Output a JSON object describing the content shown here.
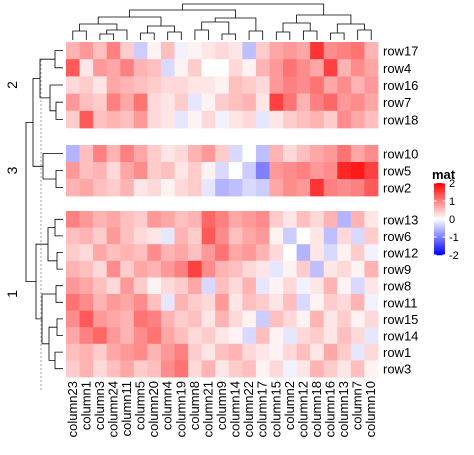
{
  "chart_data": {
    "type": "heatmap",
    "columns": [
      "column23",
      "column1",
      "column3",
      "column24",
      "column11",
      "column5",
      "column20",
      "column4",
      "column19",
      "column8",
      "column21",
      "column9",
      "column14",
      "column22",
      "column17",
      "column15",
      "column2",
      "column12",
      "column18",
      "column16",
      "column13",
      "column7",
      "column10"
    ],
    "row_slices": [
      {
        "label": "2",
        "rows": [
          "row17",
          "row4",
          "row16",
          "row7",
          "row18"
        ]
      },
      {
        "label": "3",
        "rows": [
          "row10",
          "row5",
          "row2"
        ]
      },
      {
        "label": "1",
        "rows": [
          "row13",
          "row6",
          "row12",
          "row9",
          "row8",
          "row11",
          "row15",
          "row14",
          "row1",
          "row3"
        ]
      }
    ],
    "values": {
      "row17": [
        0.6,
        0.8,
        0.5,
        1.0,
        0.4,
        -0.4,
        0.1,
        0.5,
        -0.1,
        0.1,
        0.2,
        0.3,
        0.2,
        -0.5,
        0.4,
        0.7,
        0.8,
        0.7,
        1.6,
        0.9,
        1.0,
        1.1,
        0.6
      ],
      "row4": [
        1.3,
        0.2,
        0.8,
        0.7,
        1.0,
        0.6,
        0.5,
        -0.3,
        0.1,
        0.4,
        0.0,
        0.0,
        0.3,
        0.1,
        0.6,
        0.8,
        1.1,
        0.9,
        0.7,
        1.5,
        0.6,
        0.9,
        0.7
      ],
      "row16": [
        0.3,
        0.4,
        0.2,
        0.7,
        0.6,
        0.5,
        0.4,
        0.3,
        0.3,
        0.2,
        0.2,
        0.1,
        0.5,
        0.4,
        0.3,
        0.8,
        1.0,
        0.9,
        1.1,
        0.7,
        0.9,
        0.6,
        0.8
      ],
      "row7": [
        0.8,
        0.5,
        0.4,
        1.0,
        0.7,
        1.1,
        0.3,
        0.2,
        0.4,
        -0.2,
        0.1,
        0.4,
        0.5,
        0.6,
        0.2,
        1.5,
        1.1,
        0.6,
        1.0,
        1.2,
        0.8,
        0.9,
        0.7
      ],
      "row18": [
        0.4,
        1.3,
        0.5,
        0.6,
        0.5,
        0.8,
        0.3,
        0.2,
        -0.2,
        0.1,
        0.3,
        -0.1,
        0.2,
        0.3,
        -0.2,
        0.2,
        0.4,
        0.5,
        0.6,
        0.4,
        0.9,
        0.7,
        0.5
      ],
      "row10": [
        -0.6,
        0.5,
        1.0,
        0.6,
        1.0,
        0.7,
        0.4,
        0.2,
        0.3,
        0.6,
        0.8,
        0.4,
        -0.3,
        0.0,
        -0.5,
        0.6,
        0.3,
        0.5,
        0.7,
        0.8,
        1.1,
        0.7,
        0.9
      ],
      "row5": [
        0.8,
        0.5,
        0.6,
        0.3,
        0.7,
        0.9,
        0.4,
        0.5,
        0.2,
        0.4,
        0.1,
        -0.3,
        0.0,
        -0.4,
        -1.0,
        0.8,
        0.9,
        1.0,
        0.8,
        0.9,
        1.7,
        1.8,
        1.5
      ],
      "row2": [
        0.6,
        0.7,
        0.5,
        0.4,
        0.6,
        0.2,
        0.3,
        0.1,
        0.3,
        0.4,
        -0.2,
        -0.6,
        -0.5,
        -0.3,
        -0.4,
        0.7,
        0.9,
        0.8,
        1.6,
        1.0,
        0.9,
        1.0,
        1.3
      ],
      "row13": [
        1.0,
        0.8,
        0.6,
        0.7,
        0.5,
        0.4,
        0.8,
        0.7,
        0.5,
        0.6,
        1.2,
        1.0,
        0.7,
        0.8,
        0.9,
        0.4,
        0.2,
        0.5,
        0.3,
        0.6,
        -0.6,
        0.6,
        0.2
      ],
      "row6": [
        0.5,
        0.6,
        0.4,
        0.8,
        0.5,
        0.3,
        0.2,
        -0.2,
        0.6,
        0.4,
        1.3,
        0.9,
        0.5,
        0.7,
        0.8,
        0.1,
        -0.4,
        0.0,
        0.2,
        -0.5,
        0.3,
        -0.3,
        0.4
      ],
      "row12": [
        0.4,
        0.3,
        0.7,
        0.5,
        0.6,
        0.5,
        0.9,
        0.6,
        0.7,
        0.5,
        0.8,
        1.1,
        0.7,
        0.8,
        0.6,
        0.3,
        0.0,
        -0.6,
        0.2,
        -0.3,
        0.1,
        0.4,
        -0.1
      ],
      "row9": [
        0.6,
        0.5,
        0.3,
        0.9,
        0.4,
        0.7,
        0.6,
        0.8,
        1.0,
        1.5,
        0.9,
        0.6,
        0.5,
        0.3,
        0.2,
        -0.2,
        0.1,
        0.4,
        -0.5,
        0.2,
        0.3,
        0.1,
        0.6
      ],
      "row8": [
        0.8,
        0.7,
        0.5,
        0.3,
        0.8,
        0.4,
        0.1,
        0.3,
        0.4,
        0.7,
        -0.3,
        0.5,
        0.3,
        0.6,
        -0.2,
        0.1,
        0.3,
        -0.1,
        0.2,
        0.6,
        0.1,
        -0.3,
        0.2
      ],
      "row11": [
        1.1,
        0.9,
        0.6,
        0.8,
        0.7,
        0.9,
        0.5,
        -0.2,
        0.6,
        0.4,
        0.3,
        0.8,
        0.2,
        0.5,
        0.4,
        0.2,
        0.5,
        -0.3,
        0.1,
        0.4,
        0.3,
        0.6,
        -0.1
      ],
      "row15": [
        0.9,
        1.3,
        0.8,
        0.7,
        0.6,
        1.1,
        1.0,
        0.6,
        0.4,
        0.5,
        0.2,
        0.6,
        0.3,
        0.1,
        -0.4,
        0.5,
        0.3,
        0.1,
        0.6,
        0.2,
        0.4,
        0.1,
        0.3
      ],
      "row14": [
        0.7,
        1.0,
        1.2,
        0.8,
        0.6,
        0.9,
        1.1,
        0.7,
        0.5,
        0.3,
        0.4,
        0.2,
        0.1,
        -0.3,
        0.5,
        0.1,
        -0.2,
        0.3,
        0.4,
        0.2,
        0.5,
        0.3,
        -0.2
      ],
      "row1": [
        0.5,
        0.6,
        0.4,
        0.7,
        0.8,
        0.9,
        0.6,
        0.8,
        1.0,
        0.4,
        0.2,
        0.5,
        0.6,
        0.3,
        0.2,
        0.1,
        0.3,
        0.5,
        0.2,
        0.7,
        0.4,
        -0.2,
        0.3
      ],
      "row3": [
        0.4,
        0.6,
        0.3,
        0.5,
        0.7,
        0.4,
        0.5,
        0.9,
        1.1,
        0.3,
        0.6,
        0.2,
        0.4,
        0.5,
        0.1,
        0.3,
        -0.1,
        0.2,
        0.6,
        0.4,
        0.2,
        0.5,
        0.1
      ]
    },
    "legend": {
      "title": "mat",
      "ticks": [
        2,
        1,
        0,
        -1,
        -2
      ],
      "position": "right"
    },
    "color_scale": {
      "low": "#0000ff",
      "mid": "#ffffff",
      "high": "#ff0000",
      "domain": [
        -2,
        0,
        2
      ]
    },
    "dendrograms": {
      "rows": true,
      "columns": true
    }
  }
}
